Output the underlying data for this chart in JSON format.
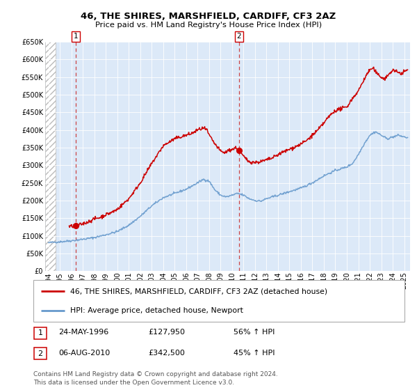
{
  "title": "46, THE SHIRES, MARSHFIELD, CARDIFF, CF3 2AZ",
  "subtitle": "Price paid vs. HM Land Registry's House Price Index (HPI)",
  "legend_line1": "46, THE SHIRES, MARSHFIELD, CARDIFF, CF3 2AZ (detached house)",
  "legend_line2": "HPI: Average price, detached house, Newport",
  "annotation1_date": "24-MAY-1996",
  "annotation1_price": "£127,950",
  "annotation1_hpi": "56% ↑ HPI",
  "annotation2_date": "06-AUG-2010",
  "annotation2_price": "£342,500",
  "annotation2_hpi": "45% ↑ HPI",
  "footer_line1": "Contains HM Land Registry data © Crown copyright and database right 2024.",
  "footer_line2": "This data is licensed under the Open Government Licence v3.0.",
  "sale1_x": 1996.39,
  "sale1_y": 127950,
  "sale2_x": 2010.59,
  "sale2_y": 342500,
  "ylim": [
    0,
    650000
  ],
  "xlim_start": 1993.7,
  "xlim_end": 2025.5,
  "chart_bg": "#dce9f8",
  "hatch_bg": "#e8e8e8",
  "red_color": "#cc0000",
  "blue_color": "#6699cc",
  "ann_box_color": "#cc0000",
  "dashed_color": "#cc4444",
  "grid_color": "#ffffff",
  "legend_border": "#aaaaaa",
  "footer_color": "#555555"
}
